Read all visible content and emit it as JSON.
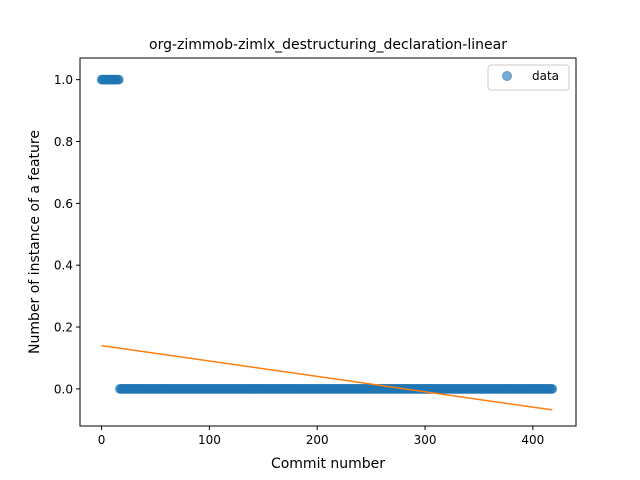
{
  "chart_data": {
    "type": "scatter",
    "title": "org-zimmob-zimlx_destructuring_declaration-linear",
    "xlabel": "Commit number",
    "ylabel": "Number of instance of a feature",
    "xlim": [
      -20,
      440
    ],
    "ylim": [
      -0.12,
      1.07
    ],
    "x_ticks": [
      0,
      100,
      200,
      300,
      400
    ],
    "y_ticks": [
      0.0,
      0.2,
      0.4,
      0.6,
      0.8,
      1.0
    ],
    "x_tick_labels": [
      "0",
      "100",
      "200",
      "300",
      "400"
    ],
    "y_tick_labels": [
      "0.0",
      "0.2",
      "0.4",
      "0.6",
      "0.8",
      "1.0"
    ],
    "series": [
      {
        "name": "data",
        "kind": "scatter",
        "color": "#1f77b4",
        "alpha": 0.6,
        "segments": [
          {
            "x_start": 0,
            "x_end": 16,
            "y": 1.0
          },
          {
            "x_start": 17,
            "x_end": 418,
            "y": 0.0
          }
        ]
      },
      {
        "kind": "line",
        "color": "#ff7f0e",
        "x": [
          0,
          418
        ],
        "y": [
          0.14,
          -0.068
        ]
      }
    ],
    "legend": {
      "position": "upper-right",
      "entries": [
        "data"
      ]
    },
    "grid": false
  }
}
